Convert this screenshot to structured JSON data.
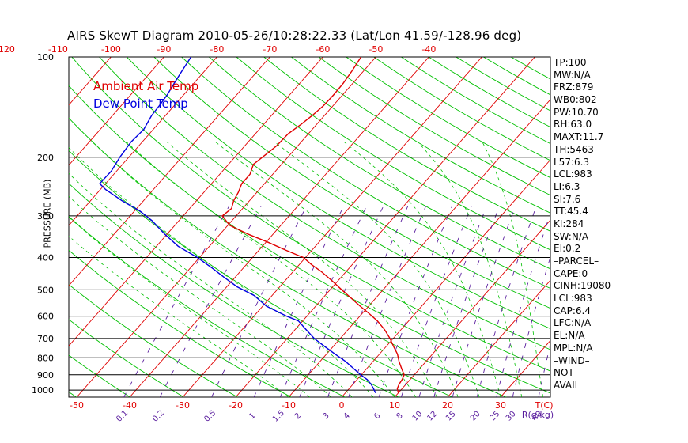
{
  "chart_data": {
    "type": "line",
    "title": "AIRS SkewT Diagram 2010-05-26/10:28:22.33 (Lat/Lon 41.59/-128.96 deg)",
    "ylabel": "PRESSURE (MB)",
    "y_scale": "log",
    "ylim": [
      1050,
      100
    ],
    "pressure_ticks": [
      100,
      200,
      300,
      400,
      500,
      600,
      700,
      800,
      900,
      1000
    ],
    "temperature_ticks_top": [
      -120,
      -110,
      -100,
      -90,
      -80,
      -70,
      -60,
      -50,
      -40
    ],
    "temperature_ticks_bottom": [
      -50,
      -40,
      -30,
      -20,
      -10,
      0,
      10,
      20,
      30
    ],
    "temperature_unit_label": "T(C)",
    "mixing_ratio_ticks": [
      "0.1",
      "0.2",
      "0.5",
      "1",
      "1.5",
      "2",
      "3",
      "4",
      "6",
      "8",
      "10",
      "12",
      "15",
      "20",
      "25",
      "30",
      "40"
    ],
    "mixing_ratio_unit_label": "R(g/kg)",
    "grid": true,
    "legend": [
      {
        "name": "Ambient Air Temp",
        "color": "#e00000"
      },
      {
        "name": "Dew Point Temp",
        "color": "#0000e0"
      }
    ],
    "series": [
      {
        "name": "Ambient Air Temp",
        "color": "#e00000",
        "pressure": [
          1020,
          990,
          960,
          930,
          900,
          860,
          820,
          780,
          740,
          700,
          660,
          620,
          590,
          560,
          530,
          500,
          470,
          440,
          420,
          400,
          380,
          360,
          340,
          320,
          300,
          285,
          270,
          255,
          240,
          225,
          210,
          200,
          185,
          170,
          160,
          150,
          140,
          130,
          120,
          110,
          100
        ],
        "temperature": [
          10,
          9.1,
          8.7,
          8.5,
          8.1,
          6.5,
          4.9,
          3.4,
          1.4,
          -0.6,
          -3.0,
          -5.9,
          -8.6,
          -11.6,
          -14.6,
          -17.8,
          -21.1,
          -24.8,
          -27.7,
          -30.4,
          -35,
          -39.6,
          -44.8,
          -49.7,
          -52.6,
          -52.1,
          -53.0,
          -53.5,
          -54.3,
          -54.3,
          -55.3,
          -54.8,
          -54.0,
          -53.8,
          -53.0,
          -52.3,
          -51.8,
          -51.7,
          -51.8,
          -52.2,
          -52.8
        ]
      },
      {
        "name": "Dew Point Temp",
        "color": "#0000e0",
        "pressure": [
          1020,
          990,
          960,
          930,
          900,
          860,
          820,
          780,
          740,
          700,
          660,
          620,
          600,
          560,
          520,
          490,
          460,
          430,
          400,
          370,
          340,
          310,
          290,
          270,
          250,
          240,
          220,
          200,
          180,
          165,
          150,
          140,
          130,
          120,
          110,
          100
        ],
        "temperature": [
          5.7,
          4.6,
          3.4,
          1.9,
          -0.1,
          -2.6,
          -5.2,
          -8.4,
          -11.6,
          -14.9,
          -17.8,
          -20.8,
          -23.8,
          -29.3,
          -33.4,
          -38.0,
          -41.9,
          -45.9,
          -50.4,
          -55.9,
          -60.5,
          -65.1,
          -69.0,
          -74.1,
          -79.0,
          -81.1,
          -81.0,
          -81.7,
          -82.1,
          -81.8,
          -82.6,
          -82.8,
          -83.1,
          -83.7,
          -84.3,
          -84.9
        ]
      }
    ],
    "stats": [
      "TP:100",
      "MW:N/A",
      "FRZ:879",
      "WB0:802",
      "PW:10.70",
      "RH:63.0",
      "MAXT:11.7",
      "TH:5463",
      "L57:6.3",
      "LCL:983",
      "LI:6.3",
      "SI:7.6",
      "TT:45.4",
      "KI:284",
      "SW:N/A",
      "EI:0.2",
      "–PARCEL–",
      "CAPE:0",
      "CINH:19080",
      "LCL:983",
      "CAP:6.4",
      "LFC:N/A",
      "EL:N/A",
      "MPL:N/A",
      "–WIND–",
      "NOT",
      "AVAIL"
    ]
  }
}
